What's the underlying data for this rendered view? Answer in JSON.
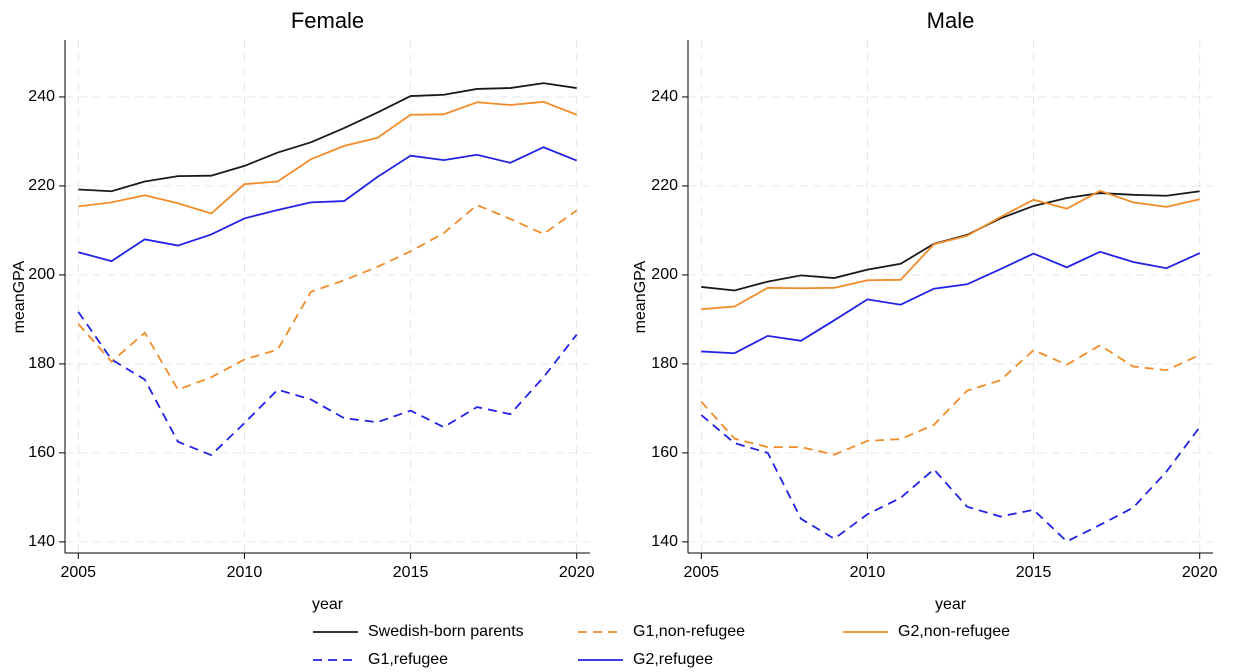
{
  "chart_data": [
    {
      "type": "line",
      "title": "Female",
      "xlabel": "year",
      "ylabel": "meanGPA",
      "x": [
        2005,
        2006,
        2007,
        2008,
        2009,
        2010,
        2011,
        2012,
        2013,
        2014,
        2015,
        2016,
        2017,
        2018,
        2019,
        2020
      ],
      "xlim": [
        2004.6,
        2020.4
      ],
      "xticks": [
        2005,
        2010,
        2015,
        2020
      ],
      "ylim": [
        137.5,
        252.8
      ],
      "yticks": [
        140,
        160,
        180,
        200,
        220,
        240
      ],
      "grid": true,
      "series": [
        {
          "name": "Swedish-born parents",
          "color": "#1a1a1a",
          "dash": false,
          "values": [
            219.2,
            218.8,
            221,
            222.2,
            222.3,
            224.5,
            227.5,
            229.8,
            233,
            236.5,
            240.2,
            240.5,
            241.8,
            242,
            243.1,
            242
          ]
        },
        {
          "name": "G1,non-refugee",
          "color": "#f28c28",
          "dash": true,
          "values": [
            189,
            180.5,
            187,
            174.2,
            177,
            181,
            183.2,
            196.2,
            198.8,
            201.8,
            205.3,
            209.4,
            215.7,
            212.6,
            209.2,
            214.5
          ]
        },
        {
          "name": "G2,non-refugee",
          "color": "#f28c28",
          "dash": false,
          "values": [
            215.4,
            216.3,
            217.9,
            216.1,
            213.8,
            220.4,
            221,
            226,
            229,
            230.8,
            236,
            236.1,
            238.8,
            238.2,
            238.9,
            236
          ]
        },
        {
          "name": "G1,refugee",
          "color": "#2222e6",
          "dash": true,
          "values": [
            191.7,
            181,
            176.5,
            162.5,
            159.5,
            166.7,
            174.2,
            172,
            167.8,
            166.9,
            169.5,
            165.8,
            170.3,
            168.7,
            177,
            186.6
          ]
        },
        {
          "name": "G2,refugee",
          "color": "#2222e6",
          "dash": false,
          "values": [
            205.1,
            203.1,
            208,
            206.6,
            209.1,
            212.7,
            214.6,
            216.3,
            216.6,
            222,
            226.8,
            225.8,
            227,
            225.2,
            228.7,
            225.7
          ]
        }
      ]
    },
    {
      "type": "line",
      "title": "Male",
      "xlabel": "year",
      "ylabel": "meanGPA",
      "x": [
        2005,
        2006,
        2007,
        2008,
        2009,
        2010,
        2011,
        2012,
        2013,
        2014,
        2015,
        2016,
        2017,
        2018,
        2019,
        2020
      ],
      "xlim": [
        2004.6,
        2020.4
      ],
      "xticks": [
        2005,
        2010,
        2015,
        2020
      ],
      "ylim": [
        137.5,
        252.8
      ],
      "yticks": [
        140,
        160,
        180,
        200,
        220,
        240
      ],
      "grid": true,
      "series": [
        {
          "color": "#1a1a1a",
          "dash": false,
          "values": [
            197.3,
            196.5,
            198.5,
            199.9,
            199.3,
            201.2,
            202.5,
            207,
            209,
            212.7,
            215.5,
            217.3,
            218.4,
            218,
            217.8,
            218.8
          ]
        },
        {
          "color": "#f28c28",
          "dash": true,
          "values": [
            171.5,
            163.2,
            161.3,
            161.3,
            159.6,
            162.7,
            163.1,
            166.3,
            174,
            176.3,
            183.1,
            179.8,
            184.2,
            179.4,
            178.6,
            182
          ]
        },
        {
          "color": "#f28c28",
          "dash": false,
          "values": [
            192.3,
            192.9,
            197.1,
            197,
            197.1,
            198.8,
            198.9,
            206.9,
            208.8,
            213,
            216.9,
            214.9,
            218.9,
            216.3,
            215.3,
            217
          ]
        },
        {
          "color": "#2222e6",
          "dash": true,
          "values": [
            168.5,
            162.2,
            160,
            145.2,
            140.7,
            146.2,
            149.9,
            156.3,
            147.9,
            145.7,
            147.2,
            140.1,
            143.8,
            147.7,
            155.8,
            165.8
          ]
        },
        {
          "color": "#2222e6",
          "dash": false,
          "values": [
            182.8,
            182.4,
            186.3,
            185.2,
            189.8,
            194.5,
            193.3,
            196.9,
            197.9,
            201.3,
            204.8,
            201.7,
            205.2,
            202.9,
            201.5,
            204.9
          ]
        }
      ]
    }
  ]
}
